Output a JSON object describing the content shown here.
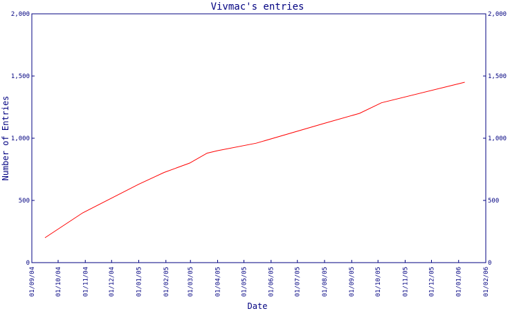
{
  "chart_data": {
    "type": "line",
    "title": "Vivmac's entries",
    "xlabel": "Date",
    "ylabel": "Number of Entries",
    "x_type": "date",
    "xlim": [
      "2004-09-01",
      "2006-02-01"
    ],
    "ylim": [
      0,
      2000
    ],
    "grid": false,
    "legend": "none",
    "series_color": "#ff0000",
    "axis_color": "#000080",
    "y_ticks": [
      0,
      500,
      1000,
      1500,
      2000
    ],
    "y_tick_labels": [
      "0",
      "500",
      "1,000",
      "1,500",
      "2,000"
    ],
    "x_ticks": [
      "2004-09-01",
      "2004-10-01",
      "2004-11-01",
      "2004-12-01",
      "2005-01-01",
      "2005-02-01",
      "2005-03-01",
      "2005-04-01",
      "2005-05-01",
      "2005-06-01",
      "2005-07-01",
      "2005-08-01",
      "2005-09-01",
      "2005-10-01",
      "2005-11-01",
      "2005-12-01",
      "2006-01-01",
      "2006-02-01"
    ],
    "x_tick_labels": [
      "01/09/04",
      "01/10/04",
      "01/11/04",
      "01/12/04",
      "01/01/05",
      "01/02/05",
      "01/03/05",
      "01/04/05",
      "01/05/05",
      "01/06/05",
      "01/07/05",
      "01/08/05",
      "01/09/05",
      "01/10/05",
      "01/11/05",
      "01/12/05",
      "01/01/06",
      "01/02/06"
    ],
    "series": [
      {
        "x": [
          "2004-09-16",
          "2004-10-29",
          "2005-01-01",
          "2005-01-30",
          "2005-02-28",
          "2005-03-20",
          "2005-04-01",
          "2005-05-15",
          "2005-08-01",
          "2005-09-10",
          "2005-10-05",
          "2006-01-08"
        ],
        "y": [
          200,
          400,
          630,
          725,
          800,
          880,
          900,
          960,
          1120,
          1200,
          1285,
          1450
        ]
      }
    ]
  }
}
